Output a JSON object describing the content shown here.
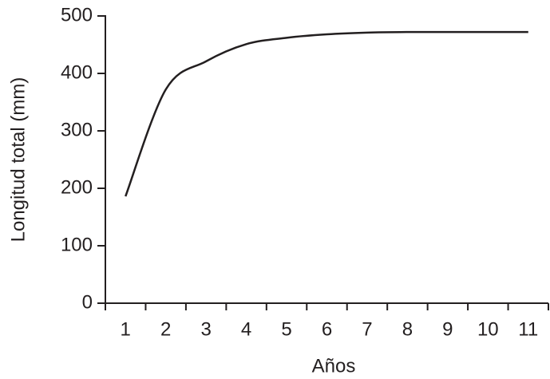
{
  "chart_data": {
    "type": "line",
    "x_label": "Años",
    "y_label": "Longitud total (mm)",
    "categories": [
      "1",
      "2",
      "3",
      "4",
      "5",
      "6",
      "7",
      "8",
      "9",
      "10",
      "11"
    ],
    "values": [
      186,
      372,
      421,
      451,
      462,
      468,
      471,
      472,
      472,
      472,
      472
    ],
    "color": "#231f20",
    "ylim": [
      0,
      500
    ],
    "yticks": [
      0,
      100,
      200,
      300,
      400,
      500
    ],
    "grid": false
  }
}
